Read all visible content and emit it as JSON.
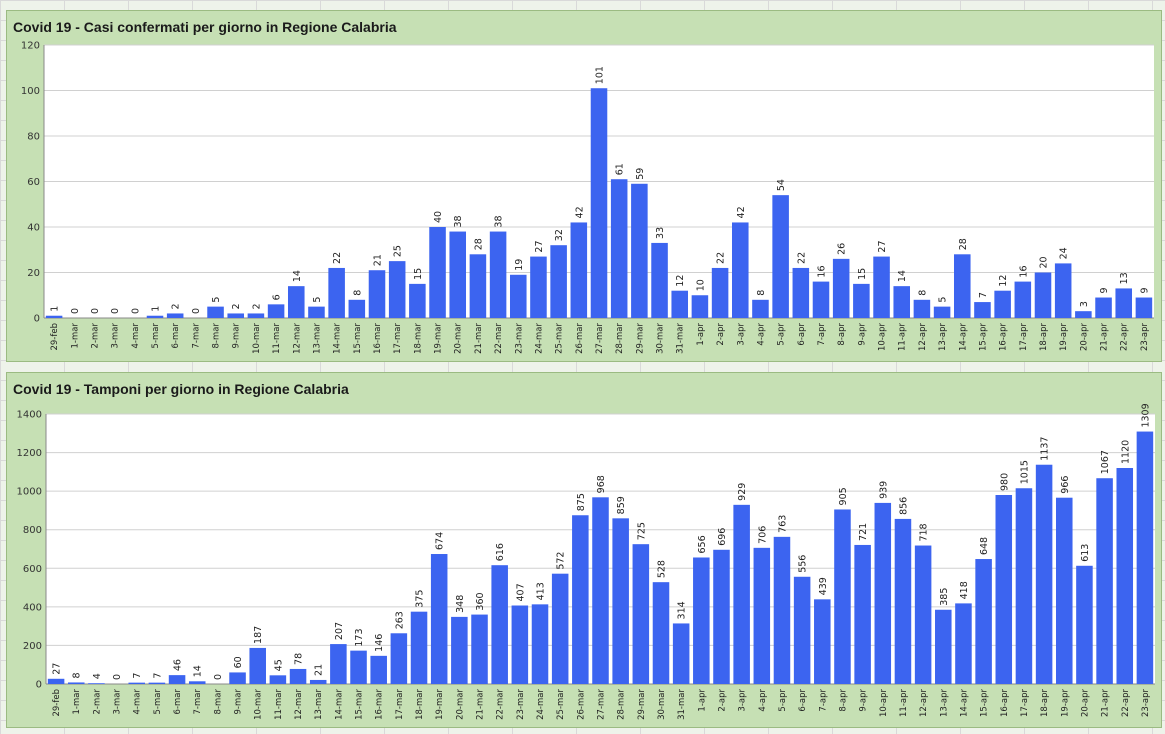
{
  "chart_data": [
    {
      "type": "bar",
      "title": "Covid 19 - Casi confermati per giorno in Regione Calabria",
      "xlabel": "",
      "ylabel": "",
      "ylim": [
        0,
        120
      ],
      "yticks": [
        0,
        20,
        40,
        60,
        80,
        100,
        120
      ],
      "grid": true,
      "bar_color": "#3c64f0",
      "categories": [
        "29-feb",
        "1-mar",
        "2-mar",
        "3-mar",
        "4-mar",
        "5-mar",
        "6-mar",
        "7-mar",
        "8-mar",
        "9-mar",
        "10-mar",
        "11-mar",
        "12-mar",
        "13-mar",
        "14-mar",
        "15-mar",
        "16-mar",
        "17-mar",
        "18-mar",
        "19-mar",
        "20-mar",
        "21-mar",
        "22-mar",
        "23-mar",
        "24-mar",
        "25-mar",
        "26-mar",
        "27-mar",
        "28-mar",
        "29-mar",
        "30-mar",
        "31-mar",
        "1-apr",
        "2-apr",
        "3-apr",
        "4-apr",
        "5-apr",
        "6-apr",
        "7-apr",
        "8-apr",
        "9-apr",
        "10-apr",
        "11-apr",
        "12-apr",
        "13-apr",
        "14-apr",
        "15-apr",
        "16-apr",
        "17-apr",
        "18-apr",
        "19-apr",
        "20-apr",
        "21-apr",
        "22-apr",
        "23-apr"
      ],
      "values": [
        1,
        0,
        0,
        0,
        0,
        1,
        2,
        0,
        5,
        2,
        2,
        6,
        14,
        5,
        22,
        8,
        21,
        25,
        15,
        40,
        38,
        28,
        38,
        19,
        27,
        32,
        42,
        101,
        61,
        59,
        33,
        12,
        10,
        22,
        42,
        8,
        54,
        22,
        16,
        26,
        15,
        27,
        14,
        8,
        5,
        28,
        7,
        12,
        16,
        20,
        24,
        3,
        9,
        13,
        9
      ]
    },
    {
      "type": "bar",
      "title": "Covid 19 - Tamponi per giorno in Regione Calabria",
      "xlabel": "",
      "ylabel": "",
      "ylim": [
        0,
        1400
      ],
      "yticks": [
        0,
        200,
        400,
        600,
        800,
        1000,
        1200,
        1400
      ],
      "grid": true,
      "bar_color": "#3c64f0",
      "categories": [
        "29-feb",
        "1-mar",
        "2-mar",
        "3-mar",
        "4-mar",
        "5-mar",
        "6-mar",
        "7-mar",
        "8-mar",
        "9-mar",
        "10-mar",
        "11-mar",
        "12-mar",
        "13-mar",
        "14-mar",
        "15-mar",
        "16-mar",
        "17-mar",
        "18-mar",
        "19-mar",
        "20-mar",
        "21-mar",
        "22-mar",
        "23-mar",
        "24-mar",
        "25-mar",
        "26-mar",
        "27-mar",
        "28-mar",
        "29-mar",
        "30-mar",
        "31-mar",
        "1-apr",
        "2-apr",
        "3-apr",
        "4-apr",
        "5-apr",
        "6-apr",
        "7-apr",
        "8-apr",
        "9-apr",
        "10-apr",
        "11-apr",
        "12-apr",
        "13-apr",
        "14-apr",
        "15-apr",
        "16-apr",
        "17-apr",
        "18-apr",
        "19-apr",
        "20-apr",
        "21-apr",
        "22-apr",
        "23-apr"
      ],
      "values": [
        27,
        8,
        4,
        0,
        7,
        7,
        46,
        14,
        0,
        60,
        187,
        45,
        78,
        21,
        207,
        173,
        146,
        263,
        375,
        674,
        348,
        360,
        616,
        407,
        413,
        572,
        875,
        968,
        859,
        725,
        528,
        314,
        656,
        696,
        929,
        706,
        763,
        556,
        439,
        905,
        721,
        939,
        856,
        718,
        385,
        418,
        648,
        980,
        1015,
        1137,
        966,
        613,
        1067,
        1120,
        1309
      ]
    }
  ]
}
